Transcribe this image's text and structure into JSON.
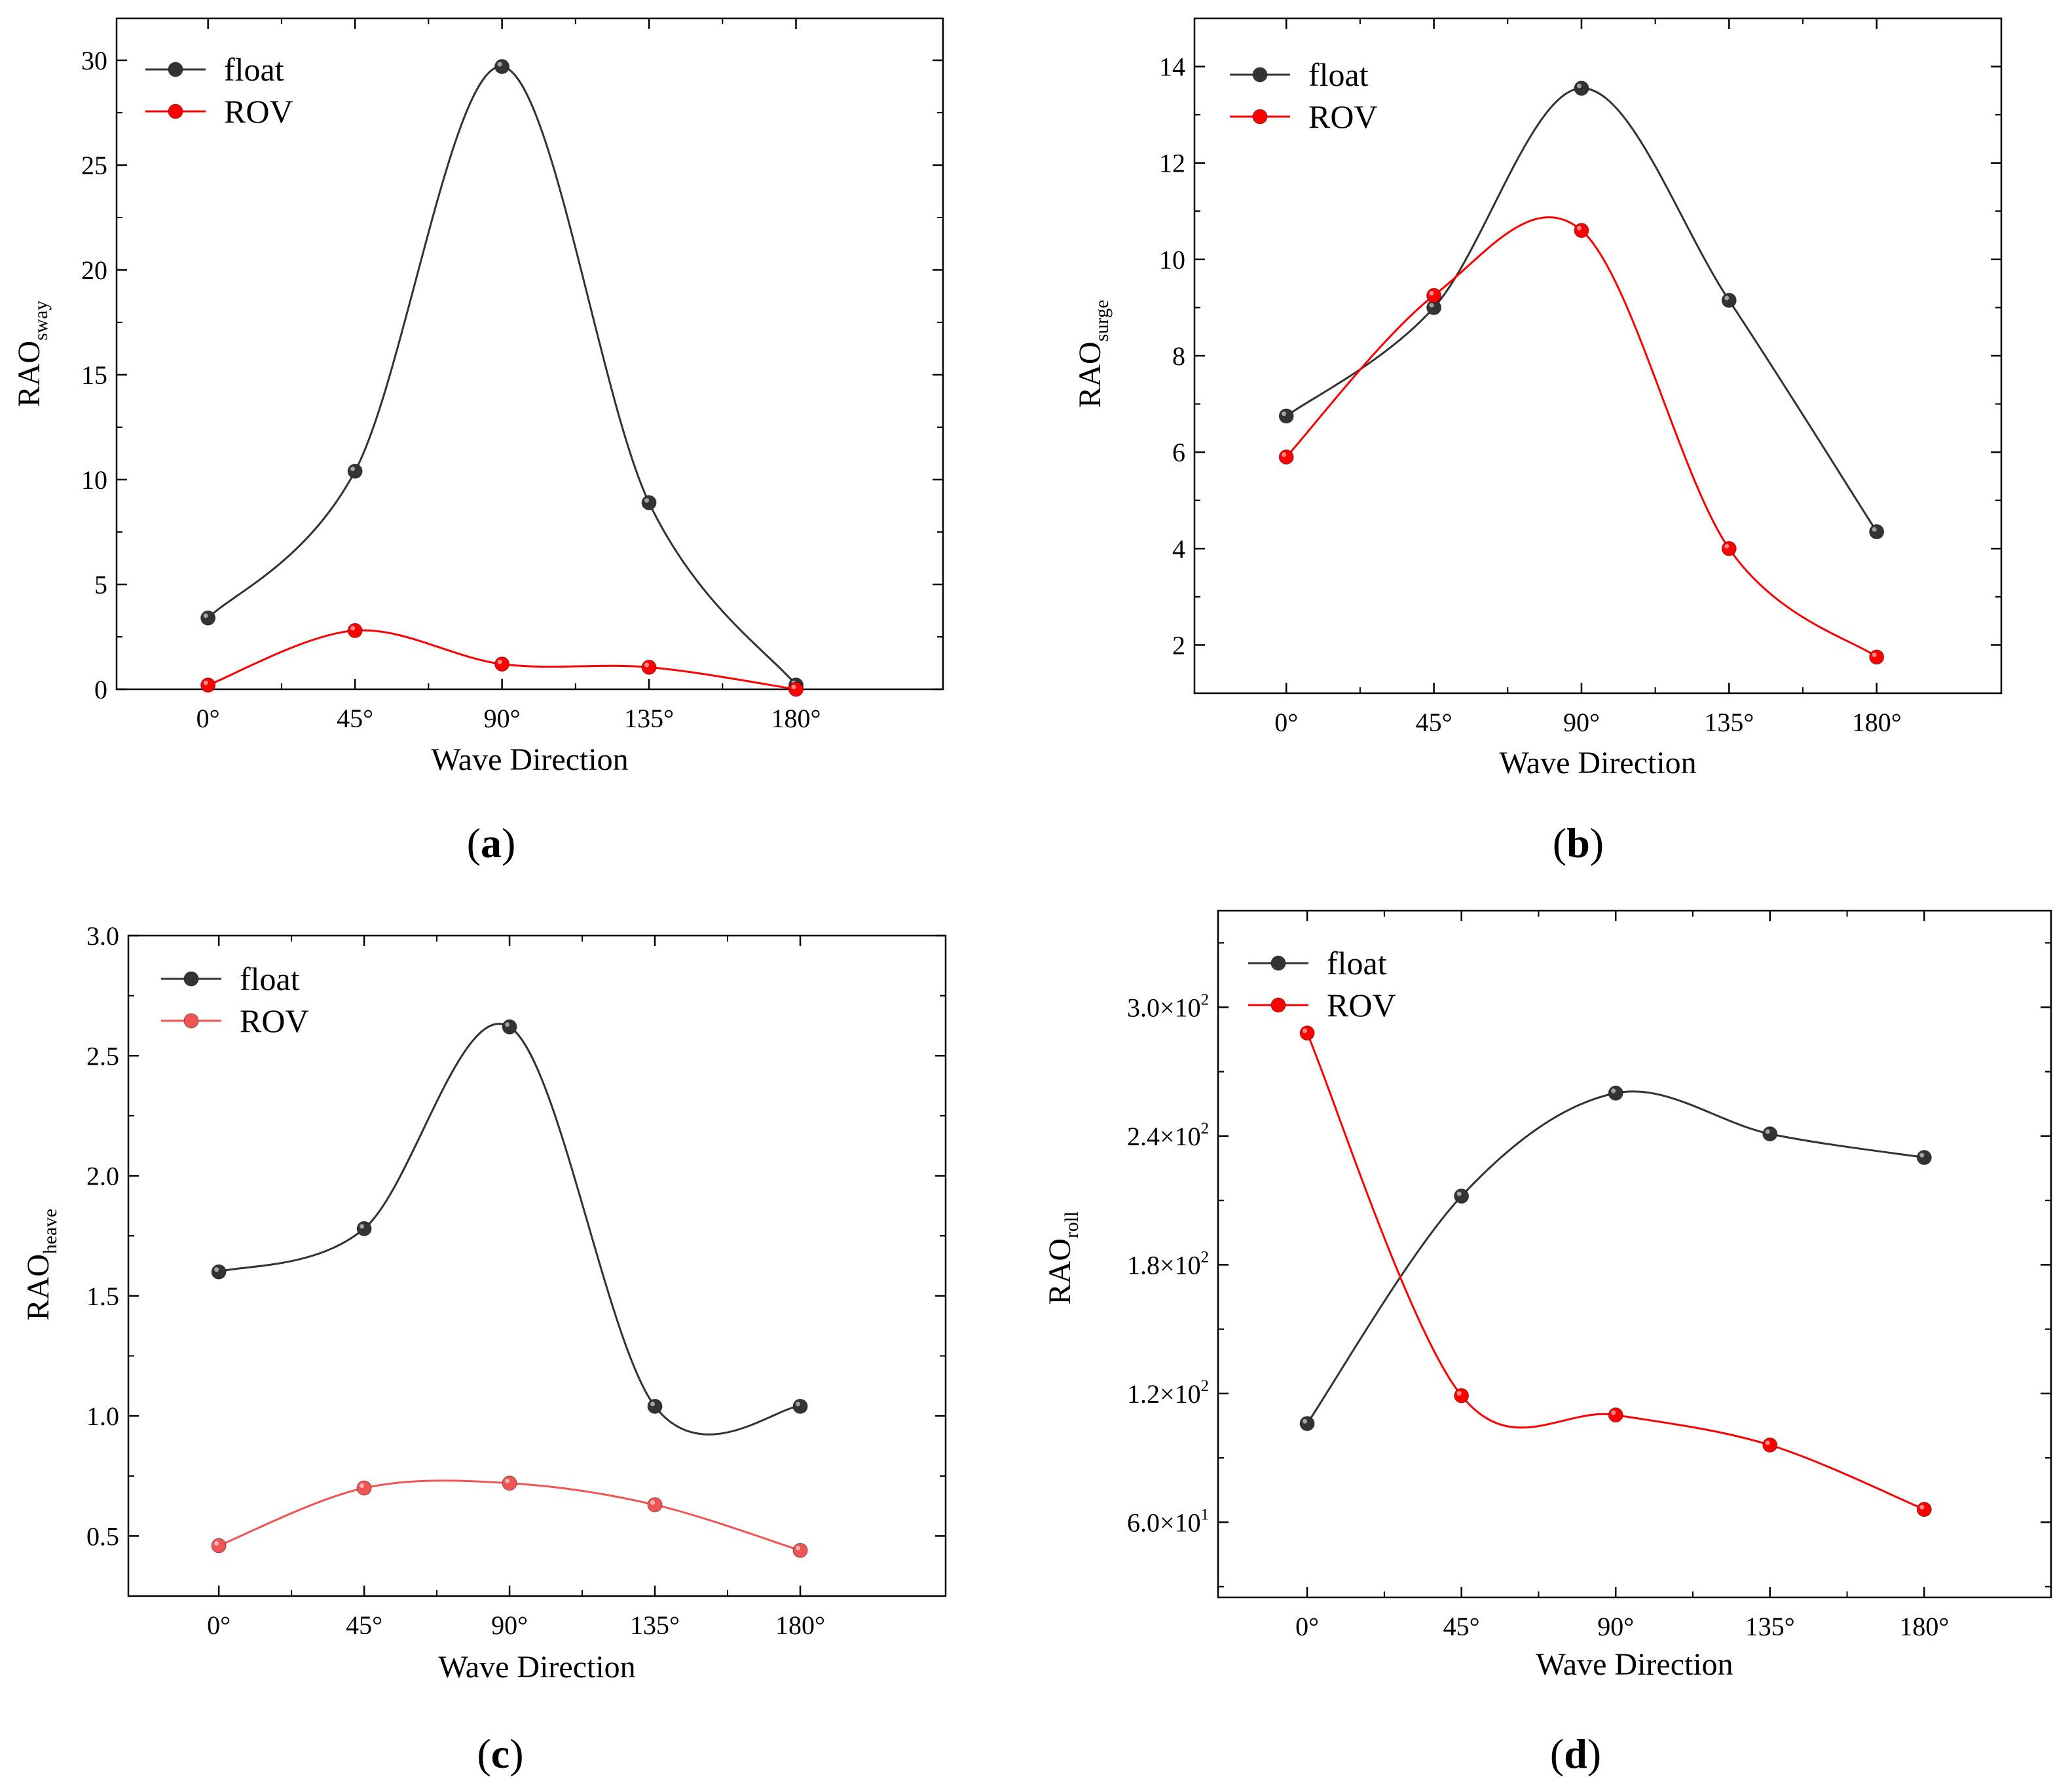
{
  "chart_data": [
    {
      "type": "line",
      "panel_label": "a",
      "categories": [
        "0°",
        "45°",
        "90°",
        "135°",
        "180°"
      ],
      "x": [
        0,
        45,
        90,
        135,
        180
      ],
      "xlabel": "Wave Direction",
      "ylabel": {
        "main": "RAO",
        "sub": "sway"
      },
      "ylim": [
        0,
        32
      ],
      "yticks": [
        0,
        5,
        10,
        15,
        20,
        25,
        30
      ],
      "ytick_labels": [
        "0",
        "5",
        "10",
        "15",
        "20",
        "25",
        "30"
      ],
      "legend_position": "top-left",
      "grid": false,
      "series": [
        {
          "name": "float",
          "color": "#333333",
          "values": [
            3.4,
            10.4,
            29.7,
            8.9,
            0.2
          ]
        },
        {
          "name": "ROV",
          "color": "#ff0000",
          "values": [
            0.2,
            2.8,
            1.2,
            1.05,
            0.0
          ]
        }
      ]
    },
    {
      "type": "line",
      "panel_label": "b",
      "categories": [
        "0°",
        "45°",
        "90°",
        "135°",
        "180°"
      ],
      "x": [
        0,
        45,
        90,
        135,
        180
      ],
      "xlabel": "Wave Direction",
      "ylabel": {
        "main": "RAO",
        "sub": "surge"
      },
      "ylim": [
        1,
        15
      ],
      "yticks": [
        2,
        4,
        6,
        8,
        10,
        12,
        14
      ],
      "ytick_labels": [
        "2",
        "4",
        "6",
        "8",
        "10",
        "12",
        "14"
      ],
      "legend_position": "top-left",
      "grid": false,
      "series": [
        {
          "name": "float",
          "color": "#333333",
          "values": [
            6.75,
            9.0,
            13.55,
            9.15,
            4.35
          ]
        },
        {
          "name": "ROV",
          "color": "#ff0000",
          "values": [
            5.9,
            9.25,
            10.6,
            4.0,
            1.75
          ]
        }
      ]
    },
    {
      "type": "line",
      "panel_label": "c",
      "categories": [
        "0°",
        "45°",
        "90°",
        "135°",
        "180°"
      ],
      "x": [
        0,
        45,
        90,
        135,
        180
      ],
      "xlabel": "Wave Direction",
      "ylabel": {
        "main": "RAO",
        "sub": "heave"
      },
      "ylim": [
        0.25,
        3.0
      ],
      "yticks": [
        0.5,
        1.0,
        1.5,
        2.0,
        2.5,
        3.0
      ],
      "ytick_labels": [
        "0.5",
        "1.0",
        "1.5",
        "2.0",
        "2.5",
        "3.0"
      ],
      "legend_position": "top-left",
      "grid": false,
      "series": [
        {
          "name": "float",
          "color": "#333333",
          "values": [
            1.6,
            1.78,
            2.62,
            1.04,
            1.04
          ]
        },
        {
          "name": "ROV",
          "color": "#ef5555",
          "values": [
            0.46,
            0.7,
            0.72,
            0.63,
            0.44
          ]
        }
      ]
    },
    {
      "type": "line",
      "panel_label": "d",
      "categories": [
        "0°",
        "45°",
        "90°",
        "135°",
        "180°"
      ],
      "x": [
        0,
        45,
        90,
        135,
        180
      ],
      "xlabel": "Wave Direction",
      "ylabel": {
        "main": "RAO",
        "sub": "roll"
      },
      "ylim": [
        25,
        345
      ],
      "yticks": [
        60,
        120,
        180,
        240,
        300
      ],
      "ytick_labels": [
        {
          "mant": "6.0×10",
          "exp": "1"
        },
        {
          "mant": "1.2×10",
          "exp": "2"
        },
        {
          "mant": "1.8×10",
          "exp": "2"
        },
        {
          "mant": "2.4×10",
          "exp": "2"
        },
        {
          "mant": "3.0×10",
          "exp": "2"
        }
      ],
      "legend_position": "top-left",
      "grid": false,
      "series": [
        {
          "name": "float",
          "color": "#333333",
          "values": [
            106,
            212,
            260,
            241,
            230
          ]
        },
        {
          "name": "ROV",
          "color": "#ff0000",
          "values": [
            288,
            119,
            110,
            96,
            66
          ]
        }
      ]
    }
  ]
}
